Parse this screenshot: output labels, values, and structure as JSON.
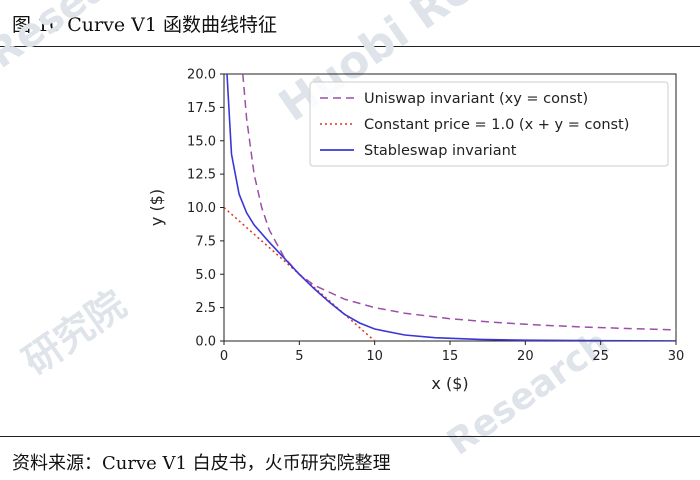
{
  "figure": {
    "title": "图 10   Curve V1 函数曲线特征",
    "source": "资料来源：Curve V1 白皮书，火币研究院整理"
  },
  "watermarks": [
    "Huobi Research",
    "Research",
    "研究院",
    "Research"
  ],
  "chart_data": {
    "type": "line",
    "title": "",
    "xlabel": "x ($)",
    "ylabel": "y ($)",
    "xlim": [
      0,
      30
    ],
    "ylim": [
      0,
      20
    ],
    "xticks": [
      "0",
      "5",
      "10",
      "15",
      "20",
      "25",
      "30"
    ],
    "yticks": [
      "0.0",
      "2.5",
      "5.0",
      "7.5",
      "10.0",
      "12.5",
      "15.0",
      "17.5",
      "20.0"
    ],
    "grid": false,
    "legend_position": "top-right",
    "series": [
      {
        "name": "Uniswap invariant (xy = const)",
        "style": "dashed",
        "color": "#9b4fa8",
        "x": [
          1.25,
          1.5,
          2,
          2.5,
          3,
          4,
          5,
          6,
          8,
          10,
          12,
          15,
          18,
          21,
          24,
          27,
          30
        ],
        "y": [
          20,
          16.67,
          12.5,
          10,
          8.33,
          6.25,
          5,
          4.17,
          3.13,
          2.5,
          2.08,
          1.67,
          1.39,
          1.19,
          1.04,
          0.93,
          0.83
        ]
      },
      {
        "name": "Constant price = 1.0 (x + y = const)",
        "style": "dotted",
        "color": "#e03020",
        "x": [
          0,
          10
        ],
        "y": [
          10,
          0
        ]
      },
      {
        "name": "Stableswap invariant",
        "style": "solid",
        "color": "#3b36d8",
        "x": [
          0.2,
          0.5,
          1,
          1.5,
          2,
          3,
          4,
          5,
          6,
          7,
          8,
          9,
          10,
          12,
          14,
          17,
          20,
          25,
          30
        ],
        "y": [
          20,
          14,
          11,
          9.6,
          8.7,
          7.4,
          6.2,
          5,
          3.9,
          2.9,
          2.0,
          1.35,
          0.9,
          0.45,
          0.25,
          0.12,
          0.06,
          0.02,
          0.01
        ]
      }
    ]
  }
}
